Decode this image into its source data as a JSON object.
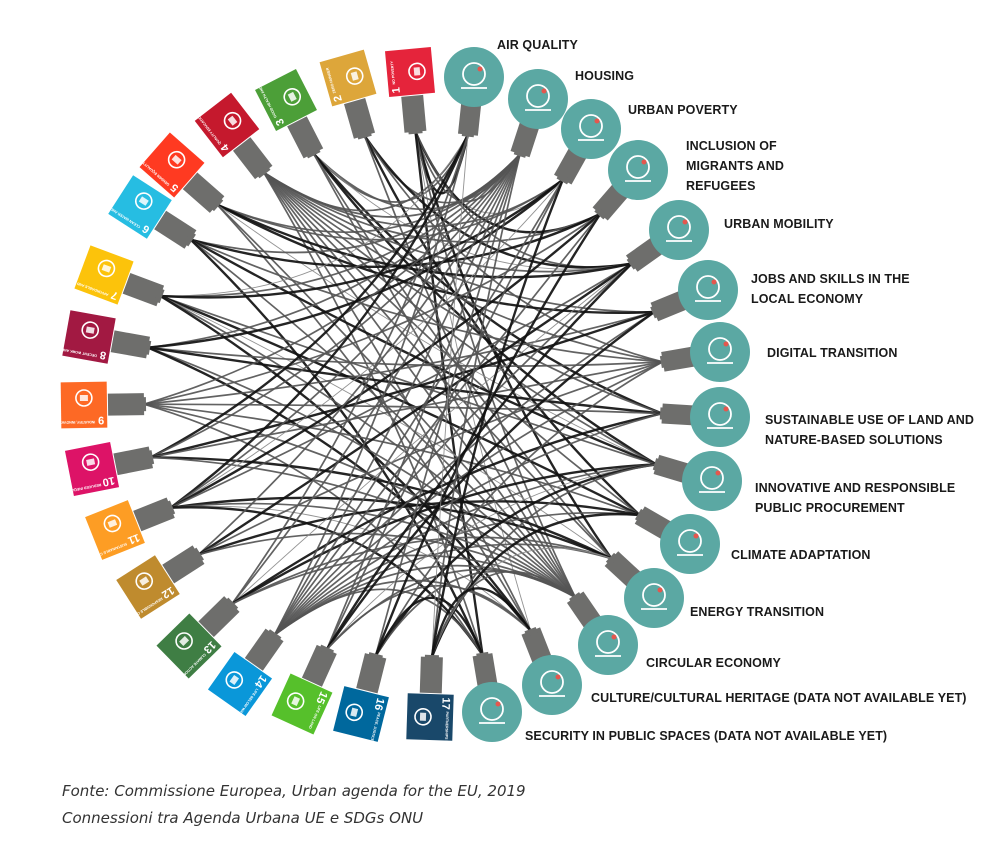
{
  "sdgs": [
    {
      "num": "1",
      "text": "NO POVERTY",
      "color": "#e5243b",
      "icon": "family-icon"
    },
    {
      "num": "2",
      "text": "ZERO HUNGER",
      "color": "#dda63a",
      "icon": "bowl-icon"
    },
    {
      "num": "3",
      "text": "GOOD HEALTH AND WELL-BEING",
      "color": "#4c9f38",
      "icon": "heartbeat-icon"
    },
    {
      "num": "4",
      "text": "QUALITY EDUCATION",
      "color": "#c5192d",
      "icon": "book-icon"
    },
    {
      "num": "5",
      "text": "GENDER EQUALITY",
      "color": "#ff3a21",
      "icon": "gender-icon"
    },
    {
      "num": "6",
      "text": "CLEAN WATER AND SANITATION",
      "color": "#26bde2",
      "icon": "water-glass-icon"
    },
    {
      "num": "7",
      "text": "AFFORDABLE AND CLEAN ENERGY",
      "color": "#fcc30b",
      "icon": "sun-icon"
    },
    {
      "num": "8",
      "text": "DECENT WORK AND ECONOMIC GROWTH",
      "color": "#a21942",
      "icon": "growth-chart-icon"
    },
    {
      "num": "9",
      "text": "INDUSTRY, INNOVATION AND INFRASTRUCTURE",
      "color": "#fd6925",
      "icon": "cubes-icon"
    },
    {
      "num": "10",
      "text": "REDUCED INEQUALITIES",
      "color": "#dd1367",
      "icon": "equality-icon"
    },
    {
      "num": "11",
      "text": "SUSTAINABLE CITIES AND COMMUNITIES",
      "color": "#fd9d24",
      "icon": "city-icon"
    },
    {
      "num": "12",
      "text": "RESPONSIBLE CONSUMPTION AND PRODUCTION",
      "color": "#bf8b2e",
      "icon": "infinity-icon"
    },
    {
      "num": "13",
      "text": "CLIMATE ACTION",
      "color": "#3f7e44",
      "icon": "eye-globe-icon"
    },
    {
      "num": "14",
      "text": "LIFE BELOW WATER",
      "color": "#0a97d9",
      "icon": "fish-icon"
    },
    {
      "num": "15",
      "text": "LIFE ON LAND",
      "color": "#56c02b",
      "icon": "tree-icon"
    },
    {
      "num": "16",
      "text": "PEACE, JUSTICE AND STRONG INSTITUTIONS",
      "color": "#00689d",
      "icon": "dove-icon"
    },
    {
      "num": "17",
      "text": "PARTNERSHIPS FOR THE GOALS",
      "color": "#19486a",
      "icon": "flower-rings-icon"
    }
  ],
  "partnerships": [
    {
      "label_lines": [
        "AIR QUALITY"
      ],
      "icon": "cloud-icon"
    },
    {
      "label_lines": [
        "HOUSING"
      ],
      "icon": "buildings-icon"
    },
    {
      "label_lines": [
        "URBAN POVERTY"
      ],
      "icon": "house-people-icon"
    },
    {
      "label_lines": [
        "INCLUSION OF",
        "MIGRANTS AND",
        "REFUGEES"
      ],
      "icon": "hands-people-icon"
    },
    {
      "label_lines": [
        "URBAN MOBILITY"
      ],
      "icon": "map-pin-route-icon"
    },
    {
      "label_lines": [
        "JOBS AND SKILLS IN THE",
        "LOCAL ECONOMY"
      ],
      "icon": "briefcase-icon"
    },
    {
      "label_lines": [
        "DIGITAL TRANSITION"
      ],
      "icon": "wifi-cloud-icon"
    },
    {
      "label_lines": [
        "SUSTAINABLE USE OF LAND AND",
        "NATURE-BASED SOLUTIONS"
      ],
      "icon": "tree-bench-icon"
    },
    {
      "label_lines": [
        "INNOVATIVE AND RESPONSIBLE",
        "PUBLIC PROCUREMENT"
      ],
      "icon": "hand-coins-icon"
    },
    {
      "label_lines": [
        "CLIMATE ADAPTATION"
      ],
      "icon": "hand-sprout-icon"
    },
    {
      "label_lines": [
        "ENERGY TRANSITION"
      ],
      "icon": "sun-plug-icon"
    },
    {
      "label_lines": [
        "CIRCULAR ECONOMY"
      ],
      "icon": "euro-cycle-icon"
    },
    {
      "label_lines": [
        "CULTURE/CULTURAL HERITAGE (DATA NOT AVAILABLE YET)"
      ],
      "icon": "temple-icon"
    },
    {
      "label_lines": [
        "SECURITY IN PUBLIC SPACES (DATA NOT AVAILABLE YET)"
      ],
      "icon": "hands-shield-icon"
    }
  ],
  "colors": {
    "partnership_circle": "#5ba8a3",
    "connector": "#6e6e6c",
    "link_strong": "#111111",
    "link_medium": "#555555",
    "link_light": "#8a8a8a"
  },
  "caption": {
    "source": "Fonte: Commissione Europea, Urban agenda for the EU, 2019",
    "subtitle": "Connessioni tra Agenda Urbana UE e SDGs ONU"
  }
}
